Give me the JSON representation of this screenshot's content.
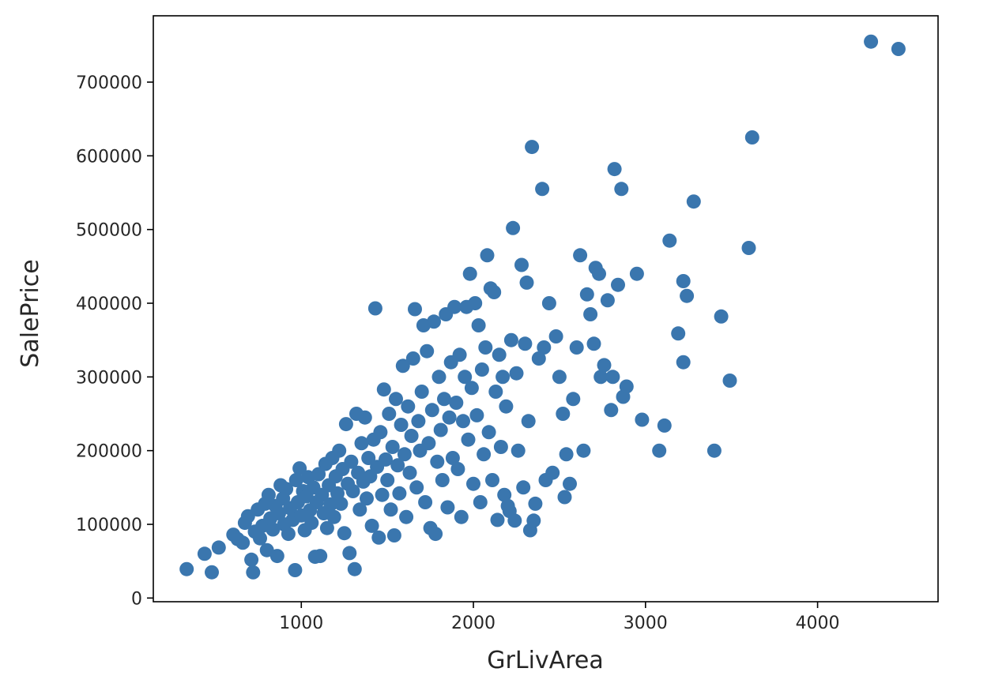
{
  "chart_data": {
    "type": "scatter",
    "title": "",
    "xlabel": "GrLivArea",
    "ylabel": "SalePrice",
    "xlim": [
      140,
      4700
    ],
    "ylim": [
      -5000,
      790000
    ],
    "x_ticks": [
      1000,
      2000,
      3000,
      4000
    ],
    "y_ticks": [
      0,
      100000,
      200000,
      300000,
      400000,
      500000,
      600000,
      700000
    ],
    "x_tick_labels": [
      "1000",
      "2000",
      "3000",
      "4000"
    ],
    "y_tick_labels": [
      "0",
      "100000",
      "200000",
      "300000",
      "400000",
      "500000",
      "600000",
      "700000"
    ],
    "grid": false,
    "legend": "none",
    "marker_color": "#3a76ae",
    "series": [
      {
        "points": [
          [
            334,
            39300
          ],
          [
            438,
            60000
          ],
          [
            480,
            35000
          ],
          [
            520,
            68500
          ],
          [
            605,
            86000
          ],
          [
            630,
            80000
          ],
          [
            660,
            75000
          ],
          [
            672,
            102000
          ],
          [
            690,
            111000
          ],
          [
            710,
            52000
          ],
          [
            720,
            34900
          ],
          [
            730,
            90000
          ],
          [
            747,
            120000
          ],
          [
            760,
            81000
          ],
          [
            774,
            98000
          ],
          [
            790,
            128000
          ],
          [
            800,
            65000
          ],
          [
            810,
            140000
          ],
          [
            820,
            108000
          ],
          [
            835,
            93000
          ],
          [
            850,
            125000
          ],
          [
            860,
            57000
          ],
          [
            870,
            115000
          ],
          [
            880,
            153000
          ],
          [
            894,
            135000
          ],
          [
            900,
            100000
          ],
          [
            912,
            148000
          ],
          [
            925,
            87000
          ],
          [
            935,
            122000
          ],
          [
            950,
            106000
          ],
          [
            964,
            37900
          ],
          [
            970,
            160000
          ],
          [
            980,
            130000
          ],
          [
            990,
            176000
          ],
          [
            1000,
            112000
          ],
          [
            1010,
            145000
          ],
          [
            1020,
            92000
          ],
          [
            1030,
            138000
          ],
          [
            1040,
            164000
          ],
          [
            1050,
            119000
          ],
          [
            1060,
            102000
          ],
          [
            1070,
            150000
          ],
          [
            1080,
            56000
          ],
          [
            1090,
            130000
          ],
          [
            1100,
            168000
          ],
          [
            1110,
            57000
          ],
          [
            1120,
            140000
          ],
          [
            1130,
            115000
          ],
          [
            1140,
            182000
          ],
          [
            1150,
            95000
          ],
          [
            1160,
            153000
          ],
          [
            1170,
            127000
          ],
          [
            1180,
            190000
          ],
          [
            1190,
            110000
          ],
          [
            1200,
            165000
          ],
          [
            1210,
            142000
          ],
          [
            1220,
            200000
          ],
          [
            1230,
            128000
          ],
          [
            1240,
            175000
          ],
          [
            1250,
            88000
          ],
          [
            1260,
            236000
          ],
          [
            1270,
            155000
          ],
          [
            1280,
            61000
          ],
          [
            1290,
            185000
          ],
          [
            1300,
            145000
          ],
          [
            1310,
            39300
          ],
          [
            1320,
            250000
          ],
          [
            1330,
            170000
          ],
          [
            1340,
            120000
          ],
          [
            1350,
            210000
          ],
          [
            1360,
            158000
          ],
          [
            1370,
            245000
          ],
          [
            1380,
            135000
          ],
          [
            1390,
            190000
          ],
          [
            1400,
            165000
          ],
          [
            1410,
            98000
          ],
          [
            1420,
            215000
          ],
          [
            1430,
            393000
          ],
          [
            1440,
            178000
          ],
          [
            1450,
            82000
          ],
          [
            1460,
            225000
          ],
          [
            1470,
            140000
          ],
          [
            1480,
            283000
          ],
          [
            1490,
            188000
          ],
          [
            1500,
            160000
          ],
          [
            1510,
            250000
          ],
          [
            1520,
            120000
          ],
          [
            1530,
            205000
          ],
          [
            1540,
            85000
          ],
          [
            1550,
            270000
          ],
          [
            1560,
            180000
          ],
          [
            1570,
            142000
          ],
          [
            1580,
            235000
          ],
          [
            1590,
            315000
          ],
          [
            1600,
            195000
          ],
          [
            1610,
            110000
          ],
          [
            1620,
            260000
          ],
          [
            1630,
            170000
          ],
          [
            1640,
            220000
          ],
          [
            1650,
            325000
          ],
          [
            1660,
            392000
          ],
          [
            1670,
            150000
          ],
          [
            1680,
            240000
          ],
          [
            1690,
            200000
          ],
          [
            1700,
            280000
          ],
          [
            1710,
            370000
          ],
          [
            1720,
            130000
          ],
          [
            1730,
            335000
          ],
          [
            1740,
            210000
          ],
          [
            1750,
            95000
          ],
          [
            1760,
            255000
          ],
          [
            1770,
            375000
          ],
          [
            1780,
            87000
          ],
          [
            1790,
            185000
          ],
          [
            1800,
            300000
          ],
          [
            1810,
            228000
          ],
          [
            1820,
            160000
          ],
          [
            1830,
            270000
          ],
          [
            1840,
            385000
          ],
          [
            1850,
            123000
          ],
          [
            1860,
            245000
          ],
          [
            1870,
            320000
          ],
          [
            1880,
            190000
          ],
          [
            1890,
            395000
          ],
          [
            1900,
            265000
          ],
          [
            1910,
            175000
          ],
          [
            1920,
            330000
          ],
          [
            1930,
            110000
          ],
          [
            1940,
            240000
          ],
          [
            1950,
            300000
          ],
          [
            1960,
            395000
          ],
          [
            1970,
            215000
          ],
          [
            1980,
            440000
          ],
          [
            1990,
            285000
          ],
          [
            2000,
            155000
          ],
          [
            2010,
            400000
          ],
          [
            2020,
            248000
          ],
          [
            2030,
            370000
          ],
          [
            2040,
            130000
          ],
          [
            2050,
            310000
          ],
          [
            2060,
            195000
          ],
          [
            2070,
            340000
          ],
          [
            2080,
            465000
          ],
          [
            2090,
            225000
          ],
          [
            2100,
            420000
          ],
          [
            2110,
            160000
          ],
          [
            2120,
            415000
          ],
          [
            2130,
            280000
          ],
          [
            2140,
            106000
          ],
          [
            2150,
            330000
          ],
          [
            2160,
            205000
          ],
          [
            2170,
            300000
          ],
          [
            2180,
            140000
          ],
          [
            2190,
            260000
          ],
          [
            2200,
            125000
          ],
          [
            2210,
            118000
          ],
          [
            2220,
            350000
          ],
          [
            2230,
            502000
          ],
          [
            2240,
            105000
          ],
          [
            2250,
            305000
          ],
          [
            2260,
            200000
          ],
          [
            2280,
            452000
          ],
          [
            2290,
            150000
          ],
          [
            2300,
            345000
          ],
          [
            2310,
            428000
          ],
          [
            2320,
            240000
          ],
          [
            2330,
            92000
          ],
          [
            2340,
            612000
          ],
          [
            2350,
            105000
          ],
          [
            2360,
            128000
          ],
          [
            2380,
            325000
          ],
          [
            2400,
            555000
          ],
          [
            2410,
            340000
          ],
          [
            2420,
            160000
          ],
          [
            2440,
            400000
          ],
          [
            2460,
            170000
          ],
          [
            2480,
            355000
          ],
          [
            2500,
            300000
          ],
          [
            2520,
            250000
          ],
          [
            2530,
            137000
          ],
          [
            2540,
            195000
          ],
          [
            2560,
            155000
          ],
          [
            2580,
            270000
          ],
          [
            2600,
            340000
          ],
          [
            2620,
            465000
          ],
          [
            2640,
            200000
          ],
          [
            2660,
            412000
          ],
          [
            2680,
            385000
          ],
          [
            2700,
            345000
          ],
          [
            2710,
            448000
          ],
          [
            2730,
            440000
          ],
          [
            2740,
            300000
          ],
          [
            2760,
            316000
          ],
          [
            2780,
            404000
          ],
          [
            2800,
            255000
          ],
          [
            2810,
            300000
          ],
          [
            2820,
            582000
          ],
          [
            2840,
            425000
          ],
          [
            2860,
            555000
          ],
          [
            2870,
            273000
          ],
          [
            2890,
            287000
          ],
          [
            2950,
            440000
          ],
          [
            2980,
            242000
          ],
          [
            3080,
            200000
          ],
          [
            3110,
            234000
          ],
          [
            3140,
            485000
          ],
          [
            3190,
            359000
          ],
          [
            3220,
            320000
          ],
          [
            3220,
            430000
          ],
          [
            3240,
            410000
          ],
          [
            3280,
            538000
          ],
          [
            3400,
            200000
          ],
          [
            3440,
            382000
          ],
          [
            3490,
            295000
          ],
          [
            3600,
            475000
          ],
          [
            3620,
            625000
          ],
          [
            4310,
            755000
          ],
          [
            4470,
            745000
          ]
        ]
      }
    ]
  }
}
